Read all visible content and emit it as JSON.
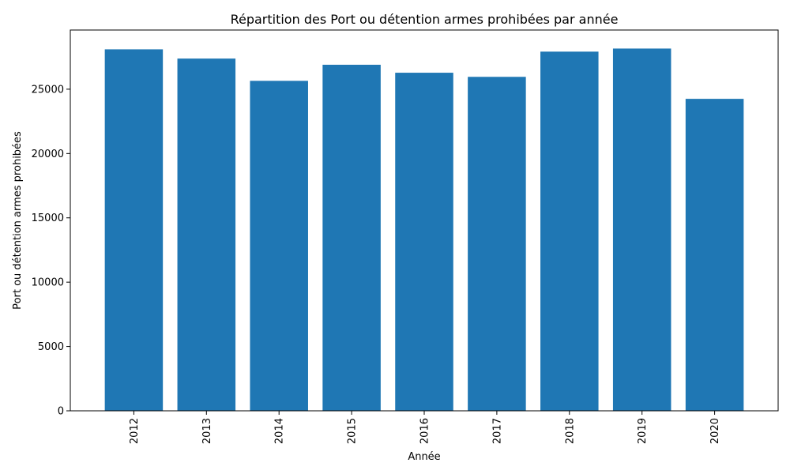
{
  "chart_data": {
    "type": "bar",
    "title": "Répartition des Port ou détention armes prohibées par année",
    "xlabel": "Année",
    "ylabel": "Port ou détention armes prohibées",
    "categories": [
      "2012",
      "2013",
      "2014",
      "2015",
      "2016",
      "2017",
      "2018",
      "2019",
      "2020"
    ],
    "values": [
      28100,
      27380,
      25650,
      26900,
      26280,
      25960,
      27920,
      28160,
      24250
    ],
    "ylim": [
      0,
      29600
    ],
    "yticks": [
      0,
      5000,
      10000,
      15000,
      20000,
      25000
    ],
    "ytick_labels": [
      "0",
      "5000",
      "10000",
      "15000",
      "20000",
      "25000"
    ],
    "bar_color": "#1f77b4",
    "grid": false,
    "x_tick_rotation": "vertical"
  }
}
